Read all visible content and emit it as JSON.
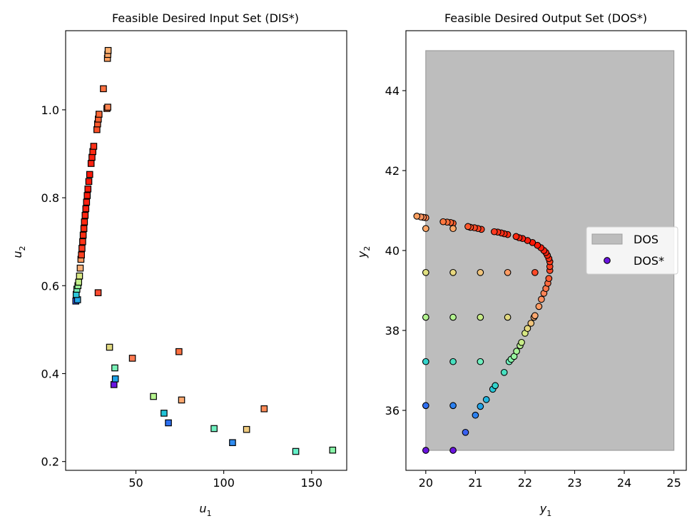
{
  "chart_data": [
    {
      "type": "scatter",
      "title": "Feasible Desired Input Set (DIS*)",
      "xlabel": "u",
      "xlabel_sub": "1",
      "ylabel": "u",
      "ylabel_sub": "2",
      "xlim": [
        10,
        170
      ],
      "ylim": [
        0.18,
        1.18
      ],
      "xticks": [
        50,
        100,
        150
      ],
      "yticks": [
        0.2,
        0.4,
        0.6,
        0.8,
        1.0
      ],
      "xtick_labels": [
        "50",
        "100",
        "150"
      ],
      "ytick_labels": [
        "0.2",
        "0.4",
        "0.6",
        "0.8",
        "1.0"
      ],
      "marker": "square",
      "points": [
        {
          "x": 37.5,
          "y": 0.375,
          "c": "#6a14e0"
        },
        {
          "x": 68.5,
          "y": 0.288,
          "c": "#2b6ff0"
        },
        {
          "x": 105.0,
          "y": 0.243,
          "c": "#2f8cf0"
        },
        {
          "x": 38.3,
          "y": 0.388,
          "c": "#1fa3e8"
        },
        {
          "x": 15.8,
          "y": 0.565,
          "c": "#3860f0"
        },
        {
          "x": 16.8,
          "y": 0.568,
          "c": "#22a8ea"
        },
        {
          "x": 66.0,
          "y": 0.31,
          "c": "#22c4d8"
        },
        {
          "x": 16.0,
          "y": 0.58,
          "c": "#2bc8dc"
        },
        {
          "x": 94.5,
          "y": 0.275,
          "c": "#70f0c0"
        },
        {
          "x": 141.0,
          "y": 0.223,
          "c": "#64f0c8"
        },
        {
          "x": 38.0,
          "y": 0.413,
          "c": "#7af2b8"
        },
        {
          "x": 16.4,
          "y": 0.592,
          "c": "#74f0b6"
        },
        {
          "x": 162.0,
          "y": 0.226,
          "c": "#88f4a8"
        },
        {
          "x": 60.0,
          "y": 0.348,
          "c": "#b6f590"
        },
        {
          "x": 17.0,
          "y": 0.6,
          "c": "#9cf29a"
        },
        {
          "x": 17.4,
          "y": 0.608,
          "c": "#c4f08a"
        },
        {
          "x": 17.9,
          "y": 0.622,
          "c": "#d8e884"
        },
        {
          "x": 35.0,
          "y": 0.46,
          "c": "#e0d880"
        },
        {
          "x": 113.0,
          "y": 0.273,
          "c": "#f0cc80"
        },
        {
          "x": 18.3,
          "y": 0.64,
          "c": "#ffb078"
        },
        {
          "x": 76.0,
          "y": 0.34,
          "c": "#ffa870"
        },
        {
          "x": 18.7,
          "y": 0.66,
          "c": "#ff9a60"
        },
        {
          "x": 48.0,
          "y": 0.435,
          "c": "#ff7a50"
        },
        {
          "x": 123.0,
          "y": 0.32,
          "c": "#ff8c58"
        },
        {
          "x": 74.5,
          "y": 0.45,
          "c": "#ff7040"
        },
        {
          "x": 28.5,
          "y": 0.584,
          "c": "#ff4a30"
        },
        {
          "x": 19.0,
          "y": 0.67,
          "c": "#ff4020"
        },
        {
          "x": 19.3,
          "y": 0.685,
          "c": "#ff3a20"
        },
        {
          "x": 19.7,
          "y": 0.7,
          "c": "#ff3418"
        },
        {
          "x": 20.0,
          "y": 0.715,
          "c": "#ff2c10"
        },
        {
          "x": 20.4,
          "y": 0.73,
          "c": "#ff2a10"
        },
        {
          "x": 20.7,
          "y": 0.745,
          "c": "#ff2810"
        },
        {
          "x": 21.1,
          "y": 0.76,
          "c": "#ff2410"
        },
        {
          "x": 21.5,
          "y": 0.775,
          "c": "#ff2010"
        },
        {
          "x": 21.9,
          "y": 0.79,
          "c": "#ff2010"
        },
        {
          "x": 22.3,
          "y": 0.805,
          "c": "#ff1c0c"
        },
        {
          "x": 22.7,
          "y": 0.82,
          "c": "#ff1c0c"
        },
        {
          "x": 23.2,
          "y": 0.837,
          "c": "#ff1808"
        },
        {
          "x": 23.7,
          "y": 0.853,
          "c": "#ff1808"
        },
        {
          "x": 24.5,
          "y": 0.878,
          "c": "#ff2010"
        },
        {
          "x": 25.0,
          "y": 0.892,
          "c": "#ff2010"
        },
        {
          "x": 25.5,
          "y": 0.905,
          "c": "#ff2a14"
        },
        {
          "x": 26.0,
          "y": 0.917,
          "c": "#ff3018"
        },
        {
          "x": 27.8,
          "y": 0.955,
          "c": "#ff5028"
        },
        {
          "x": 28.2,
          "y": 0.968,
          "c": "#ff5a2c"
        },
        {
          "x": 28.6,
          "y": 0.979,
          "c": "#ff6030"
        },
        {
          "x": 29.0,
          "y": 0.99,
          "c": "#ff6834"
        },
        {
          "x": 31.5,
          "y": 1.048,
          "c": "#ff7040"
        },
        {
          "x": 33.5,
          "y": 1.003,
          "c": "#ff7a44"
        },
        {
          "x": 34.0,
          "y": 1.006,
          "c": "#ff8450"
        },
        {
          "x": 33.8,
          "y": 1.117,
          "c": "#ffa060"
        },
        {
          "x": 34.0,
          "y": 1.126,
          "c": "#ffa868"
        },
        {
          "x": 34.2,
          "y": 1.135,
          "c": "#ffb070"
        }
      ]
    },
    {
      "type": "scatter",
      "title": "Feasible Desired Output Set (DOS*)",
      "xlabel": "y",
      "xlabel_sub": "1",
      "ylabel": "y",
      "ylabel_sub": "2",
      "xlim": [
        19.6,
        25.25
      ],
      "ylim": [
        34.5,
        45.5
      ],
      "xticks": [
        20,
        21,
        22,
        23,
        24,
        25
      ],
      "yticks": [
        36,
        38,
        40,
        42,
        44
      ],
      "xtick_labels": [
        "20",
        "21",
        "22",
        "23",
        "24",
        "25"
      ],
      "ytick_labels": [
        "36",
        "38",
        "40",
        "42",
        "44"
      ],
      "marker": "circle",
      "region": {
        "x0": 20,
        "x1": 25,
        "y0": 35,
        "y1": 45,
        "color": "#bdbdbd",
        "edge": "#9e9e9e"
      },
      "legend": {
        "placement": "center-right",
        "items": [
          {
            "label": "DOS",
            "kind": "patch",
            "color": "#bdbdbd"
          },
          {
            "label": "DOS*",
            "kind": "circle",
            "color": "#6a14e0"
          }
        ]
      },
      "points": [
        {
          "x": 20.0,
          "y": 35.0,
          "c": "#6a14e0"
        },
        {
          "x": 20.55,
          "y": 35.0,
          "c": "#6a14e0"
        },
        {
          "x": 20.8,
          "y": 35.45,
          "c": "#3860f0"
        },
        {
          "x": 21.0,
          "y": 35.88,
          "c": "#2b80f0"
        },
        {
          "x": 21.1,
          "y": 36.1,
          "c": "#1fa3e8"
        },
        {
          "x": 21.22,
          "y": 36.27,
          "c": "#22b6e0"
        },
        {
          "x": 21.35,
          "y": 36.53,
          "c": "#28c8d8"
        },
        {
          "x": 21.4,
          "y": 36.62,
          "c": "#34d4cc"
        },
        {
          "x": 21.58,
          "y": 36.95,
          "c": "#48e0c0"
        },
        {
          "x": 21.68,
          "y": 37.22,
          "c": "#70f0c0"
        },
        {
          "x": 21.72,
          "y": 37.28,
          "c": "#88f4a8"
        },
        {
          "x": 21.78,
          "y": 37.35,
          "c": "#98f4a0"
        },
        {
          "x": 21.83,
          "y": 37.48,
          "c": "#a8f498"
        },
        {
          "x": 21.9,
          "y": 37.62,
          "c": "#b8f090"
        },
        {
          "x": 21.93,
          "y": 37.7,
          "c": "#c8ec88"
        },
        {
          "x": 22.0,
          "y": 37.93,
          "c": "#d8e884"
        },
        {
          "x": 22.05,
          "y": 38.05,
          "c": "#e4d880"
        },
        {
          "x": 22.12,
          "y": 38.18,
          "c": "#f0c47c"
        },
        {
          "x": 22.18,
          "y": 38.33,
          "c": "#ffb078"
        },
        {
          "x": 22.2,
          "y": 38.37,
          "c": "#ffa870"
        },
        {
          "x": 22.28,
          "y": 38.6,
          "c": "#ff9c64"
        },
        {
          "x": 22.33,
          "y": 38.78,
          "c": "#ff9060"
        },
        {
          "x": 22.38,
          "y": 38.93,
          "c": "#ff8456"
        },
        {
          "x": 22.42,
          "y": 39.05,
          "c": "#ff784c"
        },
        {
          "x": 22.46,
          "y": 39.18,
          "c": "#ff6c40"
        },
        {
          "x": 22.48,
          "y": 39.3,
          "c": "#ff5c34"
        },
        {
          "x": 22.5,
          "y": 39.5,
          "c": "#ff4a28"
        },
        {
          "x": 22.5,
          "y": 39.6,
          "c": "#ff4020"
        },
        {
          "x": 22.5,
          "y": 39.72,
          "c": "#ff3818"
        },
        {
          "x": 22.48,
          "y": 39.8,
          "c": "#ff3018"
        },
        {
          "x": 22.45,
          "y": 39.88,
          "c": "#ff2810"
        },
        {
          "x": 22.42,
          "y": 39.95,
          "c": "#ff2410"
        },
        {
          "x": 22.38,
          "y": 40.0,
          "c": "#ff2010"
        },
        {
          "x": 22.32,
          "y": 40.07,
          "c": "#ff1c0c"
        },
        {
          "x": 22.25,
          "y": 40.13,
          "c": "#ff1808"
        },
        {
          "x": 22.15,
          "y": 40.2,
          "c": "#ff1808"
        },
        {
          "x": 22.05,
          "y": 40.25,
          "c": "#ff1c0c"
        },
        {
          "x": 21.95,
          "y": 40.3,
          "c": "#ff2010"
        },
        {
          "x": 21.88,
          "y": 40.32,
          "c": "#ff2410"
        },
        {
          "x": 21.82,
          "y": 40.35,
          "c": "#ff2810"
        },
        {
          "x": 21.65,
          "y": 40.4,
          "c": "#ff2a10"
        },
        {
          "x": 21.58,
          "y": 40.42,
          "c": "#ff2c14"
        },
        {
          "x": 21.52,
          "y": 40.44,
          "c": "#ff3018"
        },
        {
          "x": 21.45,
          "y": 40.46,
          "c": "#ff3418"
        },
        {
          "x": 21.38,
          "y": 40.47,
          "c": "#ff3a20"
        },
        {
          "x": 21.12,
          "y": 40.53,
          "c": "#ff4020"
        },
        {
          "x": 21.05,
          "y": 40.55,
          "c": "#ff4424"
        },
        {
          "x": 20.98,
          "y": 40.57,
          "c": "#ff4a28"
        },
        {
          "x": 20.9,
          "y": 40.58,
          "c": "#ff5028"
        },
        {
          "x": 20.85,
          "y": 40.6,
          "c": "#ff582c"
        },
        {
          "x": 20.55,
          "y": 40.68,
          "c": "#ff6030"
        },
        {
          "x": 20.5,
          "y": 40.7,
          "c": "#ff6834"
        },
        {
          "x": 20.43,
          "y": 40.71,
          "c": "#ff703c"
        },
        {
          "x": 20.35,
          "y": 40.72,
          "c": "#ff7840"
        },
        {
          "x": 20.0,
          "y": 40.82,
          "c": "#ff8450"
        },
        {
          "x": 19.95,
          "y": 40.83,
          "c": "#ff8c58"
        },
        {
          "x": 19.9,
          "y": 40.84,
          "c": "#ff9460"
        },
        {
          "x": 19.82,
          "y": 40.86,
          "c": "#ffa060"
        },
        {
          "x": 20.0,
          "y": 40.55,
          "c": "#ffa868"
        },
        {
          "x": 20.55,
          "y": 40.55,
          "c": "#ffa868"
        },
        {
          "x": 20.0,
          "y": 39.45,
          "c": "#e0e080"
        },
        {
          "x": 20.55,
          "y": 39.45,
          "c": "#e8d880"
        },
        {
          "x": 21.1,
          "y": 39.45,
          "c": "#f0c47c"
        },
        {
          "x": 21.65,
          "y": 39.45,
          "c": "#ff9c64"
        },
        {
          "x": 22.2,
          "y": 39.45,
          "c": "#ff4a28"
        },
        {
          "x": 20.0,
          "y": 38.33,
          "c": "#b4f490"
        },
        {
          "x": 20.55,
          "y": 38.33,
          "c": "#b4f490"
        },
        {
          "x": 21.1,
          "y": 38.33,
          "c": "#c8ec88"
        },
        {
          "x": 21.65,
          "y": 38.33,
          "c": "#e0d880"
        },
        {
          "x": 20.0,
          "y": 37.22,
          "c": "#34d4cc"
        },
        {
          "x": 20.55,
          "y": 37.22,
          "c": "#48e0c0"
        },
        {
          "x": 21.1,
          "y": 37.22,
          "c": "#70f0c0"
        },
        {
          "x": 20.0,
          "y": 36.12,
          "c": "#2f6ff0"
        },
        {
          "x": 20.55,
          "y": 36.12,
          "c": "#2b80f0"
        }
      ]
    }
  ]
}
